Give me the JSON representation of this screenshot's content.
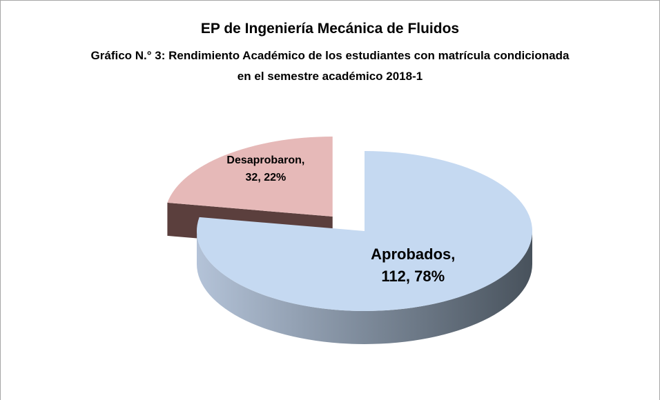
{
  "chart_data": {
    "type": "pie3d",
    "title": "EP de Ingeniería Mecánica de Fluidos",
    "subtitle": "Gráfico N.° 3: Rendimiento Académico de los estudiantes con matrícula condicionada en el semestre académico 2018-1",
    "categories": [
      "Aprobados",
      "Desaprobaron"
    ],
    "values": [
      112,
      32
    ],
    "value_labels": [
      "Aprobados, 112, 78%",
      "Desaprobaron, 32, 22%"
    ],
    "colors": [
      "#c5d9f1",
      "#e6b9b8"
    ],
    "exploded": [
      false,
      true
    ]
  }
}
